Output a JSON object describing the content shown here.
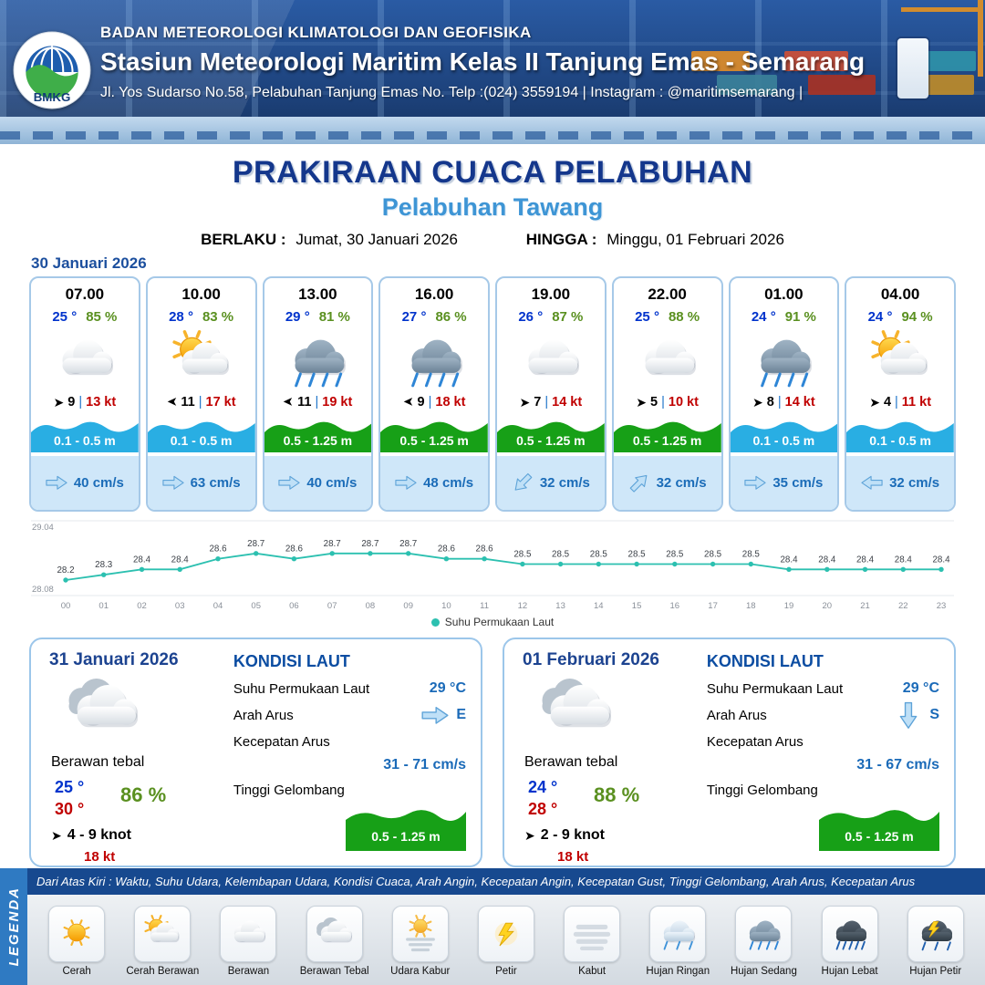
{
  "header": {
    "logo_text": "BMKG",
    "agency": "BADAN METEOROLOGI KLIMATOLOGI DAN GEOFISIKA",
    "station": "Stasiun Meteorologi Maritim Kelas II Tanjung Emas - Semarang",
    "address": "Jl. Yos Sudarso No.58, Pelabuhan Tanjung Emas No. Telp :(024) 3559194 | Instagram : @maritimsemarang |"
  },
  "title": {
    "main": "PRAKIRAAN CUACA PELABUHAN",
    "sub": "Pelabuhan Tawang",
    "berlaku_label": "BERLAKU :",
    "berlaku_value": "Jumat, 30 Januari 2026",
    "hingga_label": "HINGGA :",
    "hingga_value": "Minggu, 01 Februari 2026"
  },
  "forecast": {
    "date_label": "30 Januari 2026",
    "wind_separator": "|",
    "cards": [
      {
        "time": "07.00",
        "temp": "25 °",
        "humidity": "85 %",
        "icon": "berawan",
        "wind_deg": 0,
        "wind": "9",
        "gust": "13 kt",
        "wave": "0.1 - 0.5 m",
        "wave_color": "cyan",
        "current_deg": 0,
        "current": "40 cm/s"
      },
      {
        "time": "10.00",
        "temp": "28 °",
        "humidity": "83 %",
        "icon": "cerah-berawan",
        "wind_deg": 180,
        "wind": "11",
        "gust": "17 kt",
        "wave": "0.1 - 0.5 m",
        "wave_color": "cyan",
        "current_deg": 0,
        "current": "63 cm/s"
      },
      {
        "time": "13.00",
        "temp": "29 °",
        "humidity": "81 %",
        "icon": "hujan-sedang",
        "wind_deg": 180,
        "wind": "11",
        "gust": "19 kt",
        "wave": "0.5 - 1.25 m",
        "wave_color": "green",
        "current_deg": 0,
        "current": "40 cm/s"
      },
      {
        "time": "16.00",
        "temp": "27 °",
        "humidity": "86 %",
        "icon": "hujan-sedang",
        "wind_deg": 180,
        "wind": "9",
        "gust": "18 kt",
        "wave": "0.5 - 1.25 m",
        "wave_color": "green",
        "current_deg": 0,
        "current": "48 cm/s"
      },
      {
        "time": "19.00",
        "temp": "26 °",
        "humidity": "87 %",
        "icon": "berawan",
        "wind_deg": 0,
        "wind": "7",
        "gust": "14 kt",
        "wave": "0.5 - 1.25 m",
        "wave_color": "green",
        "current_deg": 135,
        "current": "32 cm/s"
      },
      {
        "time": "22.00",
        "temp": "25 °",
        "humidity": "88 %",
        "icon": "berawan",
        "wind_deg": 0,
        "wind": "5",
        "gust": "10 kt",
        "wave": "0.5 - 1.25 m",
        "wave_color": "green",
        "current_deg": -45,
        "current": "32 cm/s"
      },
      {
        "time": "01.00",
        "temp": "24 °",
        "humidity": "91 %",
        "icon": "hujan-sedang",
        "wind_deg": 0,
        "wind": "8",
        "gust": "14 kt",
        "wave": "0.1 - 0.5 m",
        "wave_color": "cyan",
        "current_deg": 0,
        "current": "35 cm/s"
      },
      {
        "time": "04.00",
        "temp": "24 °",
        "humidity": "94 %",
        "icon": "cerah-berawan",
        "wind_deg": 0,
        "wind": "4",
        "gust": "11 kt",
        "wave": "0.1 - 0.5 m",
        "wave_color": "cyan",
        "current_deg": 180,
        "current": "32 cm/s"
      }
    ]
  },
  "chart_data": {
    "type": "line",
    "title": "",
    "legend": "Suhu Permukaan Laut",
    "x": [
      "00",
      "01",
      "02",
      "03",
      "04",
      "05",
      "06",
      "07",
      "08",
      "09",
      "10",
      "11",
      "12",
      "13",
      "14",
      "15",
      "16",
      "17",
      "18",
      "19",
      "20",
      "21",
      "22",
      "23"
    ],
    "values": [
      28.2,
      28.3,
      28.4,
      28.4,
      28.6,
      28.7,
      28.6,
      28.7,
      28.7,
      28.7,
      28.6,
      28.6,
      28.5,
      28.5,
      28.5,
      28.5,
      28.5,
      28.5,
      28.5,
      28.4,
      28.4,
      28.4,
      28.4,
      28.4
    ],
    "ylim": [
      28.08,
      29.04
    ],
    "y_axis_labels": [
      "29.04",
      "28.08"
    ],
    "line_color": "#2cc0b0",
    "grid": false,
    "legend_position": "bottom"
  },
  "summaries": [
    {
      "date": "31 Januari 2026",
      "icon": "berawan-tebal",
      "condition": "Berawan tebal",
      "temp_min": "25 °",
      "temp_max": "30 °",
      "humidity": "86 %",
      "wind_deg": 0,
      "wind": "4 - 9 knot",
      "gust": "18 kt",
      "sea": {
        "title": "KONDISI LAUT",
        "sst_label": "Suhu Permukaan Laut",
        "sst": "29 °C",
        "arah_label": "Arah Arus",
        "arah": "E",
        "arah_deg": 0,
        "kec_label": "Kecepatan Arus",
        "kec": "31 - 71 cm/s",
        "wave_label": "Tinggi Gelombang",
        "wave": "0.5 - 1.25 m"
      }
    },
    {
      "date": "01 Februari 2026",
      "icon": "berawan-tebal",
      "condition": "Berawan tebal",
      "temp_min": "24 °",
      "temp_max": "28 °",
      "humidity": "88 %",
      "wind_deg": 0,
      "wind": "2 - 9 knot",
      "gust": "18 kt",
      "sea": {
        "title": "KONDISI LAUT",
        "sst_label": "Suhu Permukaan Laut",
        "sst": "29 °C",
        "arah_label": "Arah Arus",
        "arah": "S",
        "arah_deg": 90,
        "kec_label": "Kecepatan Arus",
        "kec": "31 - 67 cm/s",
        "wave_label": "Tinggi Gelombang",
        "wave": "0.5 - 1.25 m"
      }
    }
  ],
  "legend": {
    "side_label": "LEGENDA",
    "note": "Dari Atas Kiri : Waktu, Suhu Udara, Kelembapan Udara, Kondisi Cuaca, Arah Angin, Kecepatan Angin, Kecepatan Gust, Tinggi Gelombang, Arah Arus, Kecepatan Arus",
    "items": [
      {
        "icon": "cerah",
        "label": "Cerah"
      },
      {
        "icon": "cerah-berawan",
        "label": "Cerah Berawan"
      },
      {
        "icon": "berawan",
        "label": "Berawan"
      },
      {
        "icon": "berawan-tebal",
        "label": "Berawan Tebal"
      },
      {
        "icon": "udara-kabur",
        "label": "Udara Kabur"
      },
      {
        "icon": "petir",
        "label": "Petir"
      },
      {
        "icon": "kabut",
        "label": "Kabut"
      },
      {
        "icon": "hujan-ringan",
        "label": "Hujan Ringan"
      },
      {
        "icon": "hujan-sedang",
        "label": "Hujan Sedang"
      },
      {
        "icon": "hujan-lebat",
        "label": "Hujan Lebat"
      },
      {
        "icon": "hujan-petir",
        "label": "Hujan Petir"
      }
    ]
  },
  "colors": {
    "header_blue": "#1c4078",
    "title_blue": "#14378c",
    "sub_blue": "#3e95d5",
    "temp_blue": "#0033cc",
    "humidity_green": "#5a9020",
    "gust_red": "#c00000",
    "wave_cyan": "#29aee3",
    "wave_green": "#17a017",
    "current_band": "#cfe7f9",
    "chart_teal": "#2cc0b0"
  }
}
